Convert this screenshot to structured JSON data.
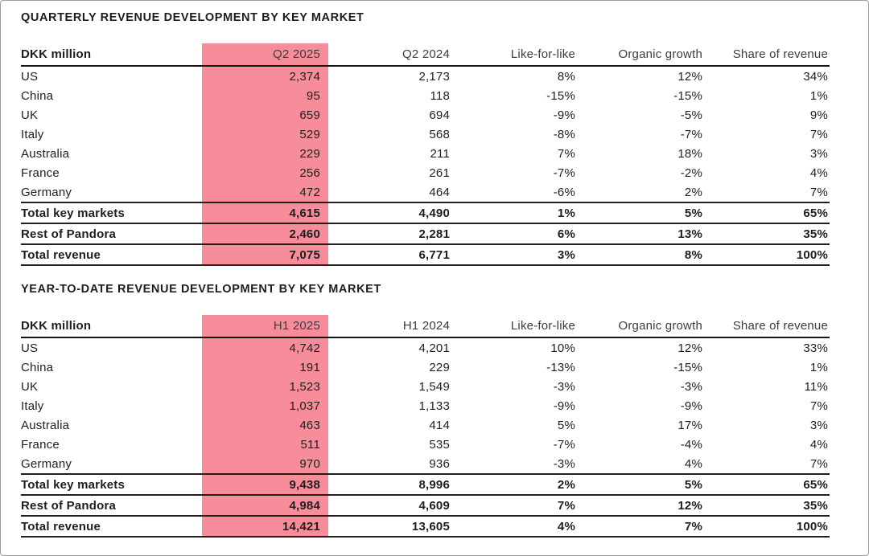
{
  "theme": {
    "highlight_color": "#f78d9b",
    "header_rule_color": "#141414",
    "total_rule_color": "#271e18",
    "page_border_color": "#9c9c9c"
  },
  "tables": [
    {
      "title": "QUARTERLY REVENUE DEVELOPMENT BY KEY MARKET",
      "columns": [
        "DKK million",
        "Q2 2025",
        "Q2 2024",
        "Like-for-like",
        "Organic growth",
        "Share of revenue"
      ],
      "highlighted_column": "Q2 2025",
      "rows": [
        {
          "label": "US",
          "values": [
            "2,374",
            "2,173",
            "8%",
            "12%",
            "34%"
          ],
          "bold": false
        },
        {
          "label": "China",
          "values": [
            "95",
            "118",
            "-15%",
            "-15%",
            "1%"
          ],
          "bold": false
        },
        {
          "label": "UK",
          "values": [
            "659",
            "694",
            "-9%",
            "-5%",
            "9%"
          ],
          "bold": false
        },
        {
          "label": "Italy",
          "values": [
            "529",
            "568",
            "-8%",
            "-7%",
            "7%"
          ],
          "bold": false
        },
        {
          "label": "Australia",
          "values": [
            "229",
            "211",
            "7%",
            "18%",
            "3%"
          ],
          "bold": false
        },
        {
          "label": "France",
          "values": [
            "256",
            "261",
            "-7%",
            "-2%",
            "4%"
          ],
          "bold": false
        },
        {
          "label": "Germany",
          "values": [
            "472",
            "464",
            "-6%",
            "2%",
            "7%"
          ],
          "bold": false
        },
        {
          "label": "Total key markets",
          "values": [
            "4,615",
            "4,490",
            "1%",
            "5%",
            "65%"
          ],
          "bold": true
        },
        {
          "label": "Rest of Pandora",
          "values": [
            "2,460",
            "2,281",
            "6%",
            "13%",
            "35%"
          ],
          "bold": true
        },
        {
          "label": "Total revenue",
          "values": [
            "7,075",
            "6,771",
            "3%",
            "8%",
            "100%"
          ],
          "bold": true
        }
      ]
    },
    {
      "title": "YEAR-TO-DATE REVENUE DEVELOPMENT BY KEY MARKET",
      "columns": [
        "DKK million",
        "H1 2025",
        "H1 2024",
        "Like-for-like",
        "Organic growth",
        "Share of revenue"
      ],
      "highlighted_column": "H1 2025",
      "rows": [
        {
          "label": "US",
          "values": [
            "4,742",
            "4,201",
            "10%",
            "12%",
            "33%"
          ],
          "bold": false
        },
        {
          "label": "China",
          "values": [
            "191",
            "229",
            "-13%",
            "-15%",
            "1%"
          ],
          "bold": false
        },
        {
          "label": "UK",
          "values": [
            "1,523",
            "1,549",
            "-3%",
            "-3%",
            "11%"
          ],
          "bold": false
        },
        {
          "label": "Italy",
          "values": [
            "1,037",
            "1,133",
            "-9%",
            "-9%",
            "7%"
          ],
          "bold": false
        },
        {
          "label": "Australia",
          "values": [
            "463",
            "414",
            "5%",
            "17%",
            "3%"
          ],
          "bold": false
        },
        {
          "label": "France",
          "values": [
            "511",
            "535",
            "-7%",
            "-4%",
            "4%"
          ],
          "bold": false
        },
        {
          "label": "Germany",
          "values": [
            "970",
            "936",
            "-3%",
            "4%",
            "7%"
          ],
          "bold": false
        },
        {
          "label": "Total key markets",
          "values": [
            "9,438",
            "8,996",
            "2%",
            "5%",
            "65%"
          ],
          "bold": true
        },
        {
          "label": "Rest of Pandora",
          "values": [
            "4,984",
            "4,609",
            "7%",
            "12%",
            "35%"
          ],
          "bold": true
        },
        {
          "label": "Total revenue",
          "values": [
            "14,421",
            "13,605",
            "4%",
            "7%",
            "100%"
          ],
          "bold": true
        }
      ]
    }
  ]
}
